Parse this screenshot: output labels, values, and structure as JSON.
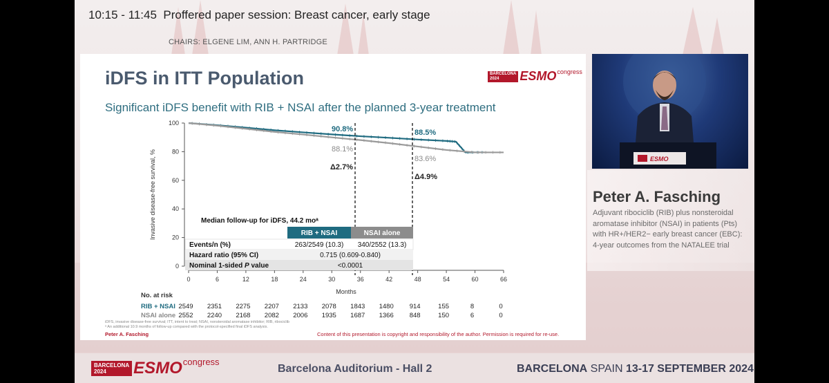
{
  "session": {
    "time": "10:15 - 11:45",
    "title": "Proffered paper session: Breast cancer, early stage",
    "chairs": "CHAIRS: ELGENE LIM, ANN H. PARTRIDGE"
  },
  "logo": {
    "line1": "BARCELONA",
    "line2": "2024",
    "word": "ESMO",
    "suffix": "congress"
  },
  "slide": {
    "title": "iDFS in ITT Population",
    "subtitle": "Significant iDFS benefit with RIB + NSAI after the planned 3-year treatment",
    "footnote_1": "iDFS, invasive disease-free survival; ITT, intent to treat; NSAI, nonsteroidal aromatase inhibitor; RIB, ribociclib",
    "footnote_2": "ᵃ An additional 10.9 months of follow-up compared with the protocol-specified final iDFS analysis.",
    "author": "Peter A. Fasching",
    "copyright": "Content of this presentation is copyright and responsibility of the author. Permission is required for re-use."
  },
  "chart_data": {
    "type": "line",
    "ylabel": "Invasive disease-free survival, %",
    "xlabel": "Months",
    "xlim": [
      0,
      66
    ],
    "ylim": [
      0,
      100
    ],
    "x_ticks": [
      0,
      6,
      12,
      18,
      24,
      30,
      36,
      42,
      48,
      54,
      60,
      66
    ],
    "y_ticks": [
      0,
      20,
      40,
      60,
      80,
      100
    ],
    "series": [
      {
        "name": "RIB + NSAI",
        "color": "#1f6b80",
        "x": [
          0,
          6,
          12,
          18,
          24,
          30,
          36,
          42,
          48,
          54,
          56,
          58,
          62
        ],
        "y": [
          100,
          98.5,
          96.8,
          95.0,
          93.5,
          92.1,
          90.8,
          89.7,
          88.5,
          87.5,
          87.0,
          79.5,
          79.5
        ]
      },
      {
        "name": "NSAI alone",
        "color": "#9a9a9a",
        "x": [
          0,
          6,
          12,
          18,
          24,
          30,
          36,
          42,
          48,
          54,
          60,
          66
        ],
        "y": [
          100,
          98.2,
          96.0,
          93.8,
          92.0,
          90.0,
          88.1,
          86.0,
          83.6,
          81.2,
          79.5,
          79.5
        ]
      }
    ],
    "annotations": {
      "rib_36": "90.8%",
      "nsai_36": "88.1%",
      "delta_36": "Δ2.7%",
      "rib_48": "88.5%",
      "nsai_48": "83.6%",
      "delta_48": "Δ4.9%"
    },
    "summary_table": {
      "title": "Median follow-up for iDFS, 44.2 moᵃ",
      "col1": "RIB + NSAI",
      "col2": "NSAI alone",
      "row1_label": "Events/n (%)",
      "row1_c1": "263/2549 (10.3)",
      "row1_c2": "340/2552 (13.3)",
      "row2_label": "Hazard ratio (95% CI)",
      "row2_value": "0.715 (0.609-0.840)",
      "row3_label_a": "Nominal 1-sided ",
      "row3_label_p": "P",
      "row3_label_b": " value",
      "row3_value": "<0.0001"
    },
    "at_risk": {
      "title": "No. at risk",
      "rows": [
        {
          "label": "RIB + NSAI",
          "values": [
            "2549",
            "2351",
            "2275",
            "2207",
            "2133",
            "2078",
            "1843",
            "1480",
            "914",
            "155",
            "8",
            "0"
          ]
        },
        {
          "label": "NSAI alone",
          "values": [
            "2552",
            "2240",
            "2168",
            "2082",
            "2006",
            "1935",
            "1687",
            "1366",
            "848",
            "150",
            "6",
            "0"
          ]
        }
      ]
    }
  },
  "speaker": {
    "name": "Peter A. Fasching",
    "talk": "Adjuvant ribociclib (RIB) plus nonsteroidal aromatase inhibitor (NSAI) in patients (Pts) with HR+/HER2− early breast cancer (EBC): 4-year outcomes from the NATALEE trial"
  },
  "footer": {
    "venue": "Barcelona Auditorium - Hall 2",
    "city_bold": "BARCELONA",
    "city_rest": " SPAIN ",
    "dates": "13-17 SEPTEMBER 2024"
  },
  "colors": {
    "teal": "#1f6b80",
    "grey": "#9a9a9a",
    "brand_red": "#b2182b"
  }
}
